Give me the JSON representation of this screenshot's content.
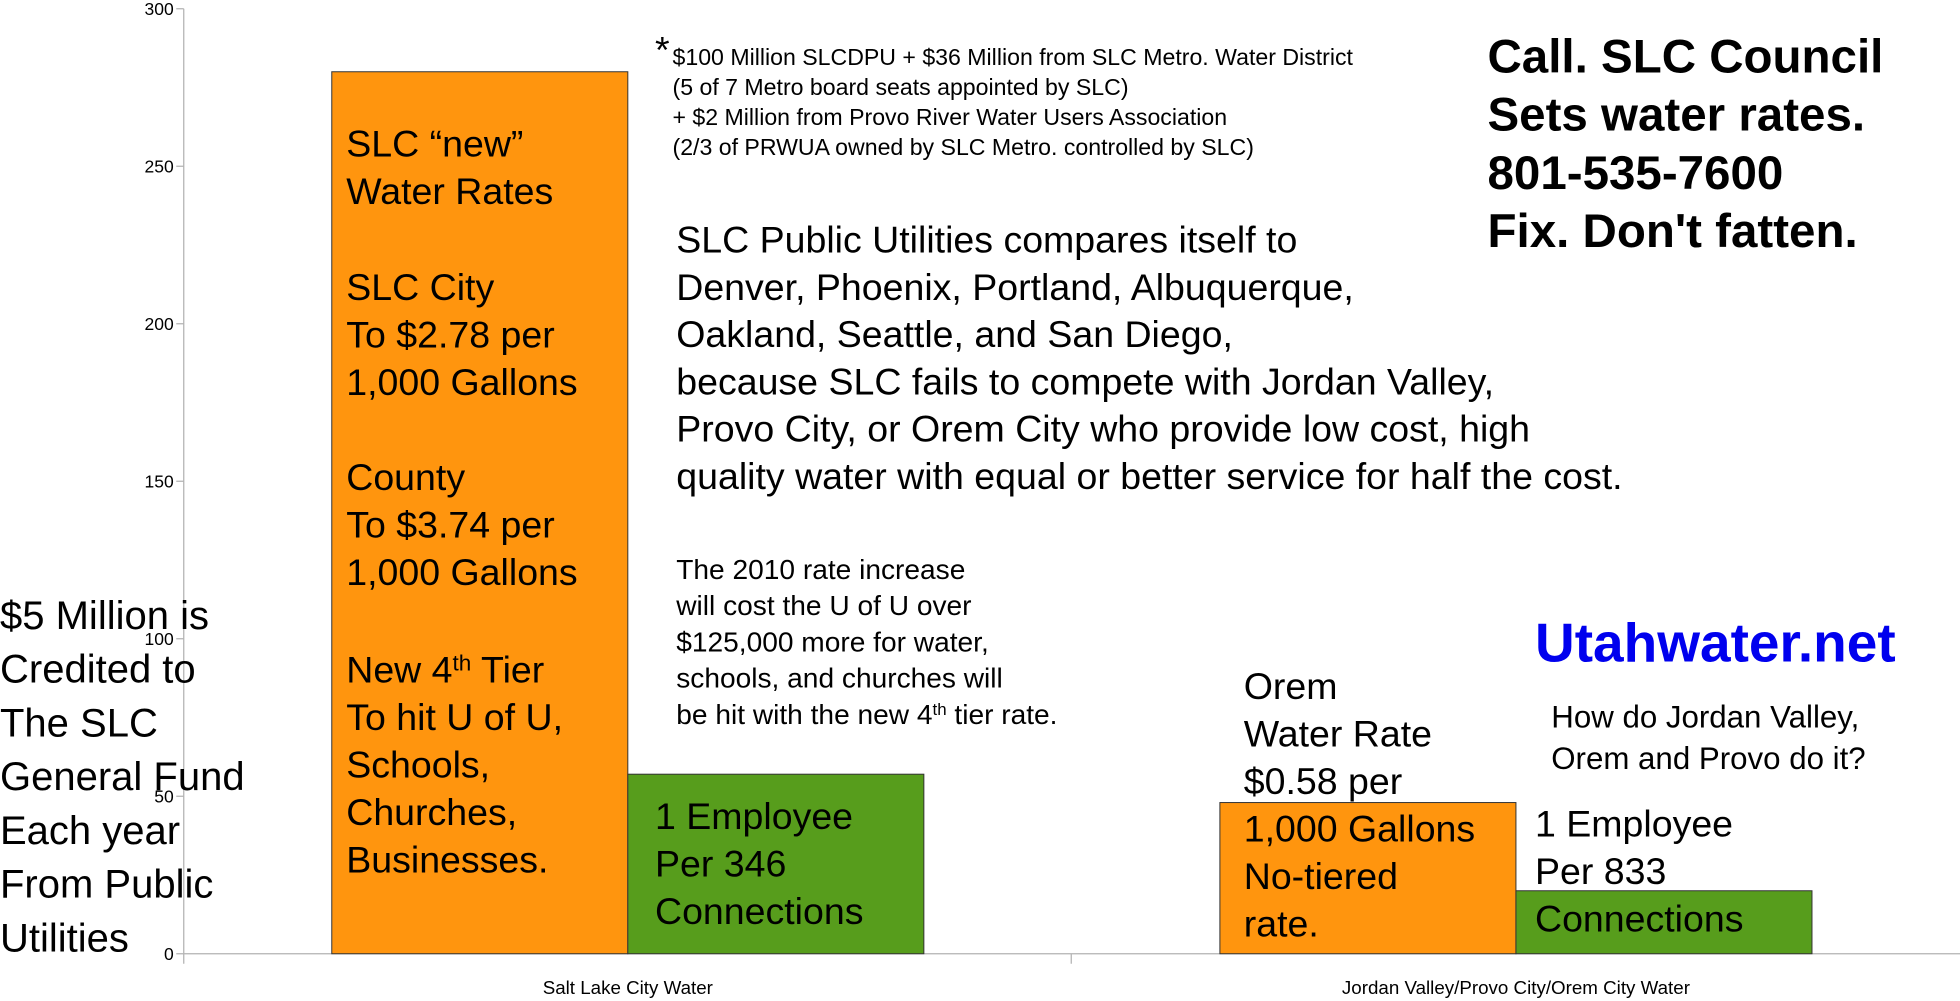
{
  "chart_data": {
    "type": "bar",
    "categories": [
      "Salt Lake City Water",
      "Jordan Valley/Provo City/Orem City  Water"
    ],
    "series": [
      {
        "name": "Water Rate",
        "color": "#ff950e",
        "values": [
          280,
          48
        ]
      },
      {
        "name": "Connections per Employee",
        "color": "#579d1c",
        "values": [
          57,
          20
        ]
      }
    ],
    "ylim": [
      0,
      300
    ],
    "yticks": [
      0,
      50,
      100,
      150,
      200,
      250,
      300
    ],
    "annotations": [
      {
        "lines": [
          "SLC “new”",
          "Water Rates"
        ]
      },
      {
        "lines": [
          "SLC City",
          "To $2.78 per",
          "1,000 Gallons"
        ]
      },
      {
        "lines": [
          "County",
          "To $3.74 per",
          "1,000 Gallons"
        ]
      },
      {
        "lines": [
          [
            "New 4",
            "th",
            " Tier"
          ],
          "To hit U of U,",
          "Schools,",
          "Churches,",
          "Businesses."
        ]
      },
      {
        "lines": [
          "1 Employee",
          "Per 346",
          "Connections"
        ]
      },
      {
        "lines": [
          "Orem",
          "Water Rate",
          "$0.58 per",
          "1,000 Gallons",
          "No-tiered",
          "rate."
        ]
      },
      {
        "lines": [
          "1 Employee",
          "Per 833",
          "Connections"
        ]
      },
      {
        "lines": [
          "$5 Million is",
          "Credited to",
          "The SLC",
          "General Fund",
          "Each year",
          "From Public",
          "Utilities"
        ]
      },
      {
        "lines": [
          "*"
        ]
      },
      {
        "lines": [
          "$100 Million SLCDPU + $36 Million from SLC Metro. Water District",
          "(5 of 7 Metro board seats appointed by SLC)",
          "+ $2 Million from Provo River Water Users Association",
          "(2/3 of PRWUA owned by SLC Metro. controlled by SLC)"
        ]
      },
      {
        "lines": [
          "SLC Public Utilities compares itself to",
          "Denver, Phoenix, Portland, Albuquerque,",
          "Oakland, Seattle, and San Diego,",
          "because SLC fails to compete with Jordan Valley,",
          "Provo City, or Orem City who provide low cost, high",
          "quality water with equal or better service for half the cost."
        ]
      },
      {
        "lines": [
          "The 2010 rate increase",
          "will cost the U of U over",
          "$125,000 more for water,",
          "schools, and churches will",
          [
            "be hit with the new 4",
            "th",
            " tier rate."
          ]
        ]
      },
      {
        "lines": [
          "Call.  SLC Council",
          "Sets water rates.",
          "801-535-7600",
          "Fix. Don't fatten."
        ]
      },
      {
        "lines": [
          "Utahwater.net"
        ]
      },
      {
        "lines": [
          "How do Jordan Valley,",
          "Orem and Provo do it?"
        ]
      }
    ]
  }
}
